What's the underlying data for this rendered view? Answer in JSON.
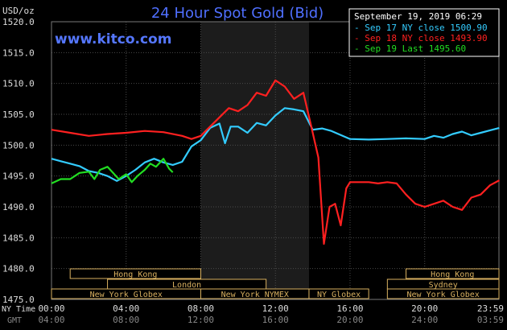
{
  "chart_data": {
    "type": "line",
    "title": "24 Hour Spot Gold (Bid)",
    "source_url": "www.kitco.com",
    "ylabel": "USD/oz",
    "date_stamp": "September 19, 2019 06:29",
    "ylim": [
      1475.0,
      1520.0
    ],
    "y_ticks": [
      "1520.0",
      "1515.0",
      "1510.0",
      "1505.0",
      "1500.0",
      "1495.0",
      "1490.0",
      "1485.0",
      "1480.0",
      "1475.0"
    ],
    "x_axis_label_ny": "NY Time",
    "x_axis_label_gmt": "GMT",
    "x_ticks_ny": [
      "00:00",
      "04:00",
      "08:00",
      "12:00",
      "16:00",
      "20:00",
      "23:59"
    ],
    "x_ticks_gmt": [
      "04:00",
      "08:00",
      "12:00",
      "16:00",
      "20:00",
      "24:00",
      "03:59"
    ],
    "grid": true,
    "legend_position": "top-right",
    "shaded_region_hours": [
      8.0,
      13.8
    ],
    "sessions": [
      {
        "label": "Hong Kong",
        "start": 1.0,
        "end": 8.0
      },
      {
        "label": "London",
        "start": 3.0,
        "end": 11.5
      },
      {
        "label": "New York Globex",
        "start": 0.0,
        "end": 8.0
      },
      {
        "label": "New York NYMEX",
        "start": 8.0,
        "end": 13.8
      },
      {
        "label": "NY Globex",
        "start": 13.8,
        "end": 17.0
      },
      {
        "label": "Hong Kong",
        "start": 19.0,
        "end": 23.98
      },
      {
        "label": "Sydney",
        "start": 18.0,
        "end": 23.98
      },
      {
        "label": "New York Globex",
        "start": 18.0,
        "end": 23.98
      }
    ],
    "series": [
      {
        "name": "Sep 17 NY close 1500.90",
        "color": "#33ccff",
        "x": [
          0,
          0.5,
          1,
          1.5,
          2,
          2.5,
          3,
          3.5,
          4,
          4.5,
          5,
          5.5,
          6,
          6.5,
          7,
          7.5,
          8,
          8.5,
          9,
          9.3,
          9.6,
          10,
          10.5,
          11,
          11.5,
          12,
          12.5,
          13,
          13.5,
          14,
          14.5,
          15,
          16,
          17,
          18,
          19,
          20,
          20.5,
          21,
          21.5,
          22,
          22.5,
          23,
          23.5,
          24
        ],
        "y": [
          1497.8,
          1497.4,
          1497.0,
          1496.6,
          1495.8,
          1495.5,
          1495.0,
          1494.2,
          1495.0,
          1496.0,
          1497.2,
          1497.8,
          1497.2,
          1496.8,
          1497.3,
          1499.8,
          1500.8,
          1502.8,
          1503.5,
          1500.3,
          1503.0,
          1503.0,
          1502.0,
          1503.6,
          1503.2,
          1504.8,
          1506.0,
          1505.8,
          1505.5,
          1502.5,
          1502.7,
          1502.3,
          1501.0,
          1500.9,
          1501.0,
          1501.1,
          1501.0,
          1501.5,
          1501.2,
          1501.8,
          1502.2,
          1501.6,
          1502.0,
          1502.4,
          1502.8
        ]
      },
      {
        "name": "Sep 18 NY close 1493.90",
        "color": "#ff2020",
        "x": [
          0,
          1,
          2,
          3,
          4,
          5,
          6,
          7,
          7.5,
          8,
          8.5,
          9,
          9.5,
          10,
          10.5,
          11,
          11.5,
          12,
          12.5,
          13,
          13.5,
          14,
          14.3,
          14.6,
          14.9,
          15.2,
          15.5,
          15.8,
          16,
          16.5,
          17,
          17.5,
          18,
          18.5,
          19,
          19.5,
          20,
          20.5,
          21,
          21.5,
          22,
          22.5,
          23,
          23.5,
          24
        ],
        "y": [
          1502.5,
          1502.0,
          1501.5,
          1501.8,
          1502.0,
          1502.3,
          1502.1,
          1501.5,
          1501.0,
          1501.5,
          1503.0,
          1504.5,
          1506.0,
          1505.5,
          1506.5,
          1508.5,
          1508.0,
          1510.5,
          1509.5,
          1507.5,
          1508.5,
          1502.0,
          1498.0,
          1484.0,
          1490.0,
          1490.5,
          1487.0,
          1493.0,
          1494.0,
          1494.0,
          1494.0,
          1493.8,
          1494.0,
          1493.8,
          1492.0,
          1490.5,
          1490.0,
          1490.5,
          1491.0,
          1490.0,
          1489.5,
          1491.5,
          1492.0,
          1493.5,
          1494.3
        ]
      },
      {
        "name": "Sep 19 Last 1495.60",
        "color": "#22dd22",
        "x": [
          0,
          0.5,
          1,
          1.5,
          2,
          2.3,
          2.6,
          3,
          3.3,
          3.6,
          4,
          4.3,
          4.6,
          5,
          5.3,
          5.6,
          6,
          6.3,
          6.5
        ],
        "y": [
          1493.8,
          1494.5,
          1494.5,
          1495.5,
          1495.7,
          1494.5,
          1496.0,
          1496.5,
          1495.5,
          1494.5,
          1495.3,
          1494.0,
          1495.0,
          1496.0,
          1497.0,
          1496.5,
          1497.8,
          1496.2,
          1495.6
        ]
      }
    ]
  }
}
